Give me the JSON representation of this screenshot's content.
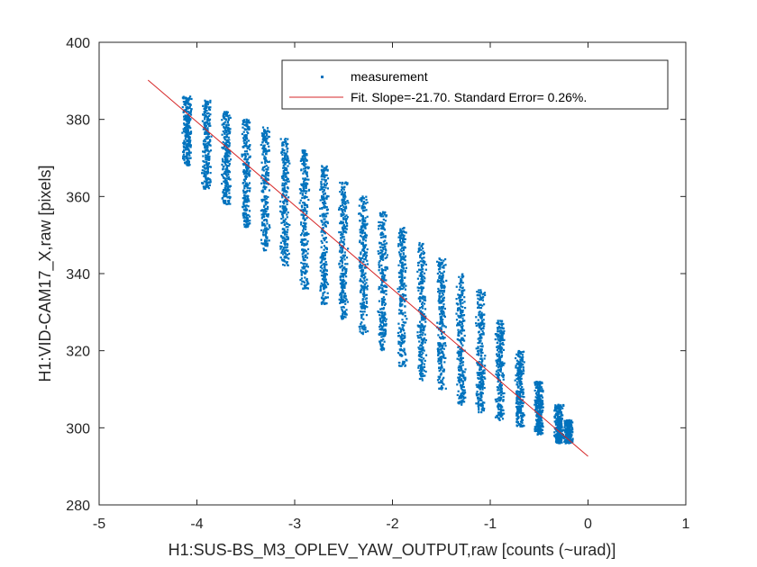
{
  "chart_data": {
    "type": "scatter",
    "title": "",
    "xlabel": "H1:SUS-BS_M3_OPLEV_YAW_OUTPUT,raw [counts (~urad)]",
    "ylabel": "H1:VID-CAM17_X,raw [pixels]",
    "xlim": [
      -5,
      1
    ],
    "ylim": [
      280,
      400
    ],
    "xticks": [
      -5,
      -4,
      -3,
      -2,
      -1,
      0,
      1
    ],
    "yticks": [
      280,
      300,
      320,
      340,
      360,
      380,
      400
    ],
    "grid": false,
    "legend_position": "top-right",
    "series": [
      {
        "name": "measurement",
        "kind": "points",
        "color": "#0072bd",
        "columns_x": [
          -4.1,
          -3.9,
          -3.7,
          -3.5,
          -3.3,
          -3.1,
          -2.9,
          -2.7,
          -2.5,
          -2.3,
          -2.1,
          -1.9,
          -1.7,
          -1.5,
          -1.3,
          -1.1,
          -0.9,
          -0.7,
          -0.5,
          -0.3,
          -0.2
        ],
        "columns_y_range": [
          [
            368,
            386
          ],
          [
            362,
            385
          ],
          [
            358,
            382
          ],
          [
            352,
            380
          ],
          [
            346,
            378
          ],
          [
            342,
            375
          ],
          [
            336,
            372
          ],
          [
            332,
            368
          ],
          [
            328,
            364
          ],
          [
            324,
            360
          ],
          [
            320,
            356
          ],
          [
            316,
            352
          ],
          [
            312,
            348
          ],
          [
            310,
            344
          ],
          [
            306,
            340
          ],
          [
            304,
            336
          ],
          [
            302,
            328
          ],
          [
            300,
            320
          ],
          [
            298,
            312
          ],
          [
            296,
            306
          ],
          [
            296,
            302
          ]
        ]
      },
      {
        "name": "Fit.  Slope=-21.70. Standard Error= 0.26%.",
        "kind": "line",
        "color": "#d62728",
        "x": [
          -4.5,
          0
        ],
        "y": [
          390.2,
          292.6
        ]
      }
    ]
  }
}
